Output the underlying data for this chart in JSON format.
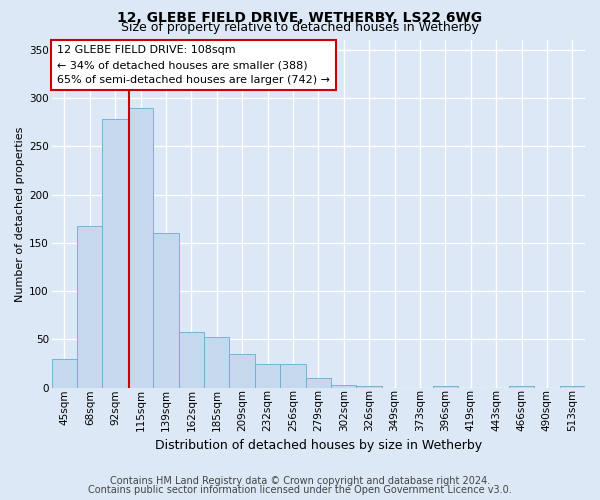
{
  "title": "12, GLEBE FIELD DRIVE, WETHERBY, LS22 6WG",
  "subtitle": "Size of property relative to detached houses in Wetherby",
  "xlabel": "Distribution of detached houses by size in Wetherby",
  "ylabel": "Number of detached properties",
  "bar_labels": [
    "45sqm",
    "68sqm",
    "92sqm",
    "115sqm",
    "139sqm",
    "162sqm",
    "185sqm",
    "209sqm",
    "232sqm",
    "256sqm",
    "279sqm",
    "302sqm",
    "326sqm",
    "349sqm",
    "373sqm",
    "396sqm",
    "419sqm",
    "443sqm",
    "466sqm",
    "490sqm",
    "513sqm"
  ],
  "bar_values": [
    30,
    167,
    278,
    290,
    160,
    58,
    52,
    35,
    25,
    25,
    10,
    3,
    2,
    0,
    0,
    2,
    0,
    0,
    2,
    0,
    2
  ],
  "bar_color": "#c5d8ee",
  "bar_edge_color": "#6aaad4",
  "ylim_max": 360,
  "yticks": [
    0,
    50,
    100,
    150,
    200,
    250,
    300,
    350
  ],
  "property_label": "12 GLEBE FIELD DRIVE: 108sqm",
  "annotation_line1": "← 34% of detached houses are smaller (388)",
  "annotation_line2": "65% of semi-detached houses are larger (742) →",
  "vline_x": 2.55,
  "fig_bg_color": "#dce8f5",
  "plot_bg_color": "#dce8f5",
  "grid_color": "#ffffff",
  "box_edge_color": "#cc0000",
  "footnote1": "Contains HM Land Registry data © Crown copyright and database right 2024.",
  "footnote2": "Contains public sector information licensed under the Open Government Licence v3.0.",
  "title_fontsize": 10,
  "subtitle_fontsize": 9,
  "ylabel_fontsize": 8,
  "xlabel_fontsize": 9,
  "tick_fontsize": 7.5,
  "annot_fontsize": 8,
  "footnote_fontsize": 7
}
